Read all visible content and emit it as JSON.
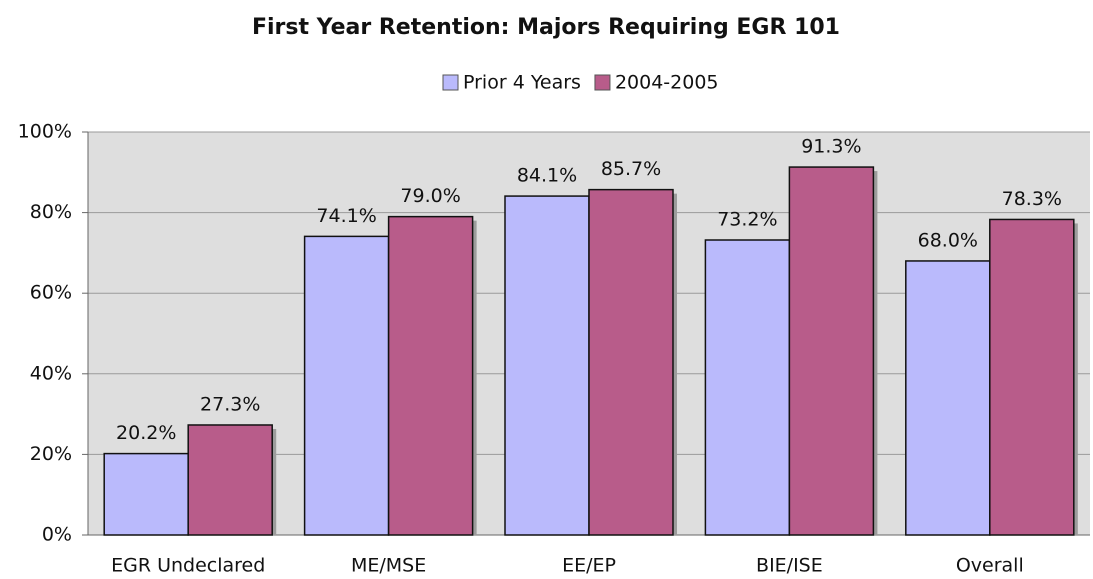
{
  "chart_data": {
    "type": "bar",
    "title": "First Year Retention: Majors Requiring EGR 101",
    "categories": [
      "EGR Undeclared",
      "ME/MSE",
      "EE/EP",
      "BIE/ISE",
      "Overall"
    ],
    "series": [
      {
        "name": "Prior 4 Years",
        "color": "#babafc",
        "values": [
          20.2,
          74.1,
          84.1,
          73.2,
          68.0
        ],
        "value_labels": [
          "20.2%",
          "74.1%",
          "84.1%",
          "73.2%",
          "68.0%"
        ]
      },
      {
        "name": "2004-2005",
        "color": "#b85c8a",
        "values": [
          27.3,
          79.0,
          85.7,
          91.3,
          78.3
        ],
        "value_labels": [
          "27.3%",
          "79.0%",
          "85.7%",
          "91.3%",
          "78.3%"
        ]
      }
    ],
    "ylim": [
      0,
      100
    ],
    "yticks": [
      {
        "value": 0,
        "label": "0%"
      },
      {
        "value": 20,
        "label": "20%"
      },
      {
        "value": 40,
        "label": "40%"
      },
      {
        "value": 60,
        "label": "60%"
      },
      {
        "value": 80,
        "label": "80%"
      },
      {
        "value": 100,
        "label": "100%"
      }
    ],
    "grid": true,
    "legend": "top"
  }
}
